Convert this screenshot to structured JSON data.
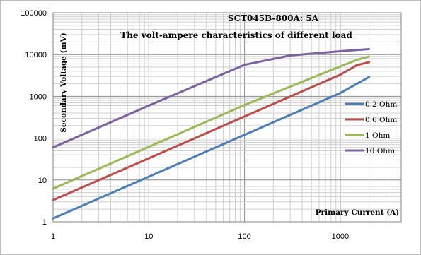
{
  "chart_data": {
    "type": "line",
    "title": "SCT045B-800A: 5A",
    "subtitle": "The volt-ampere characteristics of different load",
    "xlabel": "Primary Current (A)",
    "ylabel": "Secondary Voltage (mV)",
    "xscale": "log",
    "yscale": "log",
    "xlim": [
      1,
      5000
    ],
    "ylim": [
      1,
      100000
    ],
    "xticks": [
      "1",
      "10",
      "100",
      "1000"
    ],
    "yticks": [
      "1",
      "10",
      "100",
      "1000",
      "10000",
      "100000"
    ],
    "grid": true,
    "legend_position": "right",
    "series": [
      {
        "name": "0.2 Ohm",
        "color": "#4a7ebb",
        "x": [
          1,
          10,
          100,
          1000,
          2000
        ],
        "y": [
          1.2,
          12,
          120,
          1200,
          2900
        ]
      },
      {
        "name": "0.6 Ohm",
        "color": "#be4b48",
        "x": [
          1,
          10,
          100,
          1000,
          1500,
          2000
        ],
        "y": [
          3.3,
          33,
          330,
          3300,
          5600,
          6600
        ]
      },
      {
        "name": "1 Ohm",
        "color": "#98b954",
        "x": [
          1,
          10,
          100,
          1000,
          1500,
          2000
        ],
        "y": [
          6.2,
          62,
          620,
          5200,
          7500,
          9000
        ]
      },
      {
        "name": "10 Ohm",
        "color": "#7d60a0",
        "x": [
          1,
          10,
          100,
          300,
          1000,
          2000
        ],
        "y": [
          60,
          600,
          5700,
          9500,
          12000,
          13500
        ]
      }
    ]
  }
}
